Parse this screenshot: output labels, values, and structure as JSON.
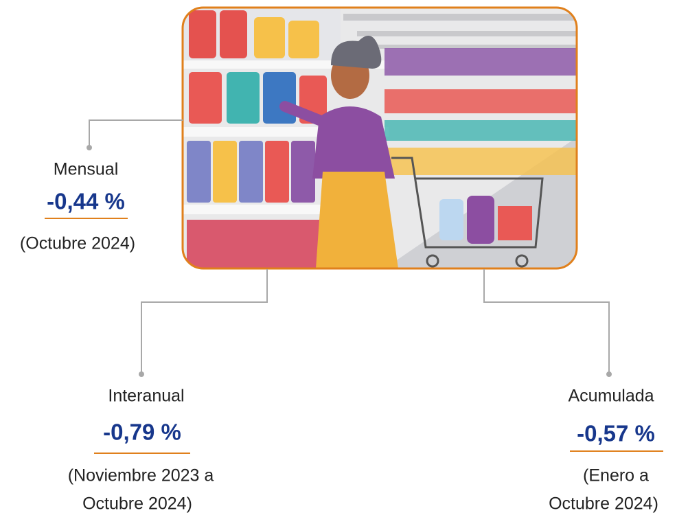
{
  "indicators": [
    {
      "label": "Mensual",
      "value": "-0,44 %",
      "period": [
        "(Octubre 2024)"
      ]
    },
    {
      "label": "Interanual",
      "value": "-0,79 %",
      "period": [
        "(Noviembre 2023 a",
        "Octubre 2024)"
      ]
    },
    {
      "label": "Acumulada",
      "value": "-0,57 %",
      "period": [
        "(Enero a",
        "Octubre 2024)"
      ]
    }
  ]
}
